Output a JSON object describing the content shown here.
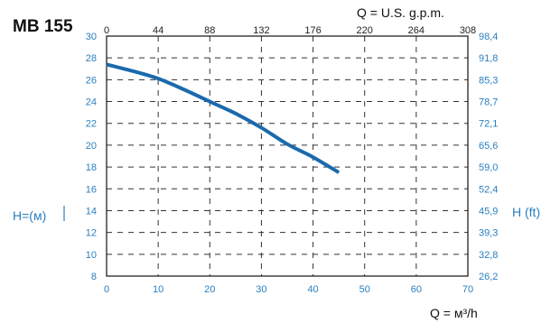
{
  "chart_data": {
    "type": "line",
    "title": "MB 155",
    "top_axis_label": "Q = U.S. g.p.m.",
    "bottom_axis_label": "Q = м³/h",
    "left_axis_label": "H=(м)",
    "right_axis_label": "H (ft)",
    "x_ticks": [
      "0",
      "10",
      "20",
      "30",
      "40",
      "50",
      "60",
      "70"
    ],
    "x_top_ticks": [
      "0",
      "44",
      "88",
      "132",
      "176",
      "220",
      "264",
      "308"
    ],
    "y_left_ticks": [
      "30",
      "28",
      "26",
      "24",
      "22",
      "20",
      "18",
      "16",
      "14",
      "12",
      "10",
      "8"
    ],
    "y_right_ticks": [
      "98,4",
      "91,8",
      "85,3",
      "78,7",
      "72,1",
      "65,6",
      "59,0",
      "52,4",
      "45,9",
      "39,3",
      "32,8",
      "26,2"
    ],
    "xlim": [
      0,
      70
    ],
    "ylim": [
      8,
      30
    ],
    "grid": true,
    "series": [
      {
        "color": "#1a6aad",
        "x": [
          0,
          5,
          10,
          15,
          20,
          25,
          30,
          35,
          40,
          45
        ],
        "y": [
          27.4,
          26.8,
          26.1,
          25.1,
          24.0,
          22.9,
          21.6,
          20.1,
          18.9,
          17.5
        ]
      }
    ]
  }
}
